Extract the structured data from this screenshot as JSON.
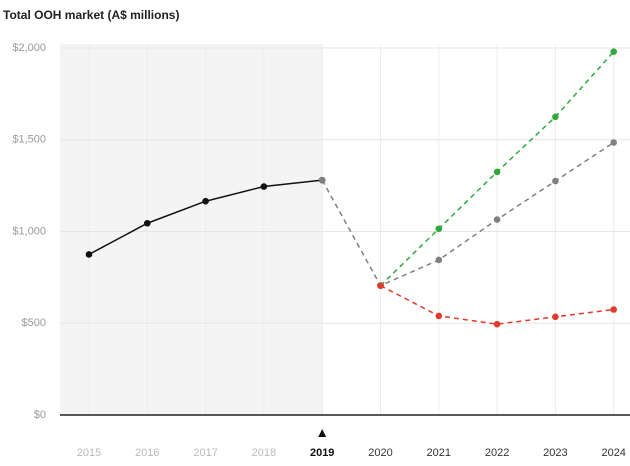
{
  "chart_data": {
    "type": "line",
    "title": "Total OOH market (A$ millions)",
    "x": [
      "2015",
      "2016",
      "2017",
      "2018",
      "2019",
      "2020",
      "2021",
      "2022",
      "2023",
      "2024"
    ],
    "series": [
      {
        "color": "#111111",
        "dashed": false,
        "values": [
          875,
          1045,
          1165,
          1245,
          1280,
          null,
          null,
          null,
          null,
          null
        ]
      },
      {
        "color": "#808080",
        "dashed": true,
        "values": [
          null,
          null,
          null,
          null,
          1280,
          705,
          845,
          1065,
          1275,
          1485
        ]
      },
      {
        "color": "#2eaa3c",
        "dashed": true,
        "values": [
          null,
          null,
          null,
          null,
          null,
          705,
          1015,
          1325,
          1625,
          1980
        ]
      },
      {
        "color": "#e03a2a",
        "dashed": true,
        "values": [
          null,
          null,
          null,
          null,
          null,
          705,
          540,
          495,
          535,
          575
        ]
      }
    ],
    "ylim": [
      0,
      2000
    ],
    "yticks": [
      {
        "value": 0,
        "label": "$0"
      },
      {
        "value": 500,
        "label": "$500"
      },
      {
        "value": 1000,
        "label": "$1,000"
      },
      {
        "value": 1500,
        "label": "$1,500"
      },
      {
        "value": 2000,
        "label": "$2,000"
      }
    ],
    "grid": true,
    "shaded_through": 4
  }
}
